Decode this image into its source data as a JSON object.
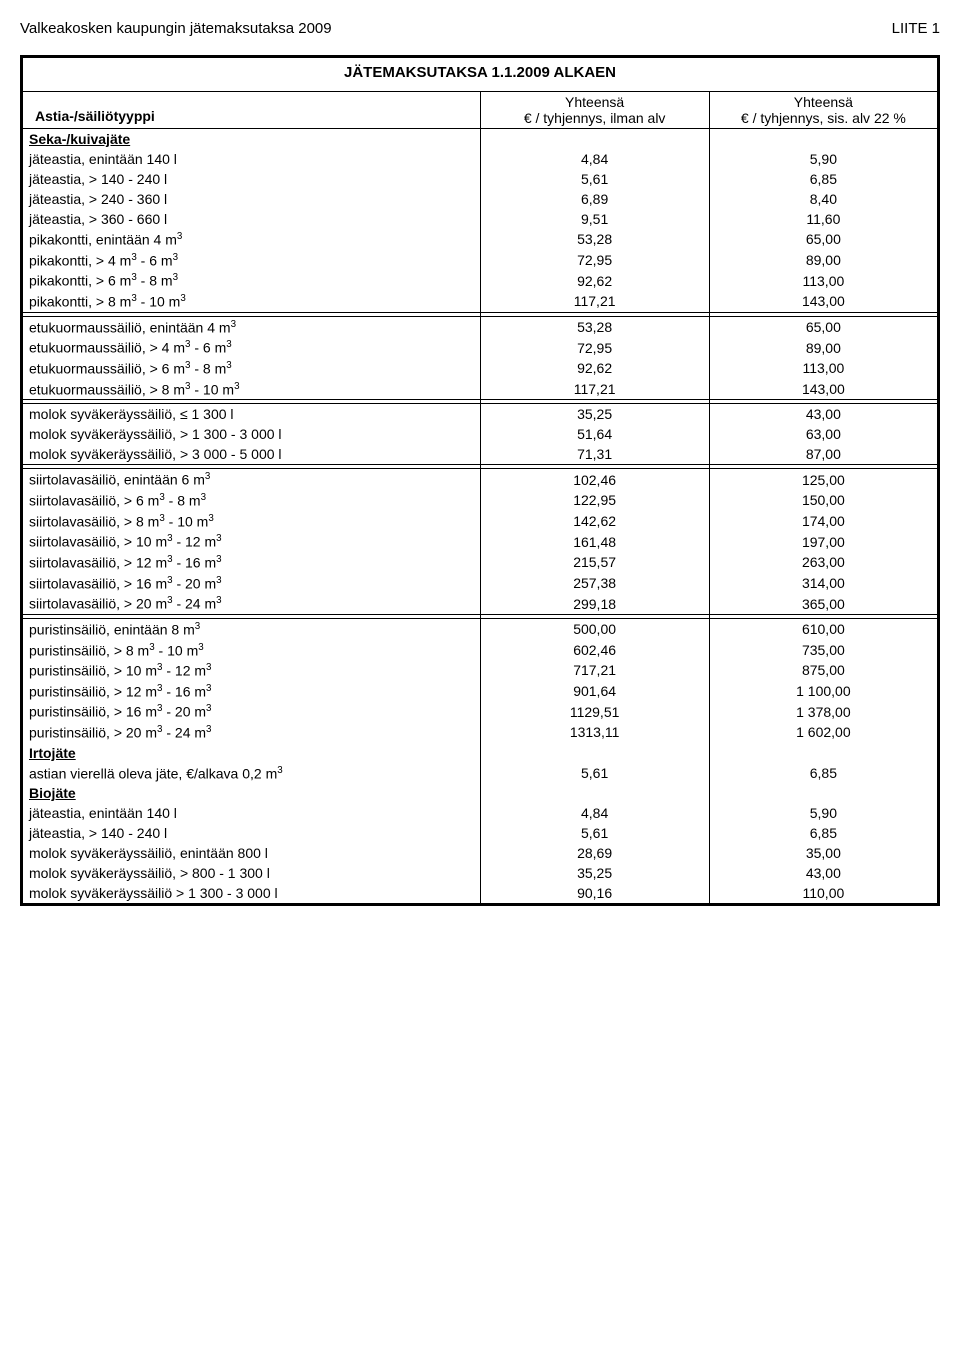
{
  "page_header_left": "Valkeakosken kaupungin jätemaksutaksa 2009",
  "page_header_right": "LIITE 1",
  "table_title": "JÄTEMAKSUTAKSA 1.1.2009 ALKAEN",
  "header_col1_label": "Astia-/säiliötyyppi",
  "header_col2_line1": "Yhteensä",
  "header_col2_line2": "€ / tyhjennys, ilman alv",
  "header_col3_line1": "Yhteensä",
  "header_col3_line2": "€ / tyhjennys, sis. alv 22 %",
  "sections": [
    {
      "title": "Seka-/kuivajäte",
      "groups": [
        [
          {
            "label": "jäteastia, enintään 140 l",
            "v1": "4,84",
            "v2": "5,90"
          },
          {
            "label": "jäteastia, > 140 - 240 l",
            "v1": "5,61",
            "v2": "6,85"
          },
          {
            "label": "jäteastia, > 240 - 360 l",
            "v1": "6,89",
            "v2": "8,40"
          },
          {
            "label": "jäteastia, > 360 - 660 l",
            "v1": "9,51",
            "v2": "11,60"
          },
          {
            "label": "pikakontti, enintään 4 m",
            "sup": "3",
            "v1": "53,28",
            "v2": "65,00"
          },
          {
            "label_html": "pikakontti, > 4 m<sup>3</sup> - 6 m<sup>3</sup>",
            "v1": "72,95",
            "v2": "89,00"
          },
          {
            "label_html": "pikakontti, > 6 m<sup>3</sup> - 8 m<sup>3</sup>",
            "v1": "92,62",
            "v2": "113,00"
          },
          {
            "label_html": "pikakontti, > 8 m<sup>3</sup> - 10 m<sup>3</sup>",
            "v1": "117,21",
            "v2": "143,00"
          }
        ],
        [
          {
            "label_html": "etukuormaussäiliö, enintään 4 m<sup>3</sup>",
            "v1": "53,28",
            "v2": "65,00"
          },
          {
            "label_html": "etukuormaussäiliö, > 4 m<sup>3</sup> - 6 m<sup>3</sup>",
            "v1": "72,95",
            "v2": "89,00"
          },
          {
            "label_html": "etukuormaussäiliö, > 6 m<sup>3</sup> - 8 m<sup>3</sup>",
            "v1": "92,62",
            "v2": "113,00"
          },
          {
            "label_html": "etukuormaussäiliö, > 8 m<sup>3</sup> - 10 m<sup>3</sup>",
            "v1": "117,21",
            "v2": "143,00"
          }
        ],
        [
          {
            "label": "molok syväkeräyssäiliö, ≤ 1 300 l",
            "v1": "35,25",
            "v2": "43,00"
          },
          {
            "label": "molok syväkeräyssäiliö, > 1 300 - 3 000 l",
            "v1": "51,64",
            "v2": "63,00"
          },
          {
            "label": "molok syväkeräyssäiliö, > 3 000 - 5 000 l",
            "v1": "71,31",
            "v2": "87,00"
          }
        ],
        [
          {
            "label_html": "siirtolavasäiliö, enintään 6 m<sup>3</sup>",
            "v1": "102,46",
            "v2": "125,00"
          },
          {
            "label_html": "siirtolavasäiliö, > 6 m<sup>3</sup> - 8 m<sup>3</sup>",
            "v1": "122,95",
            "v2": "150,00"
          },
          {
            "label_html": "siirtolavasäiliö, > 8 m<sup>3</sup> - 10 m<sup>3</sup>",
            "v1": "142,62",
            "v2": "174,00"
          },
          {
            "label_html": "siirtolavasäiliö, > 10 m<sup>3</sup> - 12 m<sup>3</sup>",
            "v1": "161,48",
            "v2": "197,00"
          },
          {
            "label_html": "siirtolavasäiliö, > 12 m<sup>3</sup> - 16 m<sup>3</sup>",
            "v1": "215,57",
            "v2": "263,00"
          },
          {
            "label_html": "siirtolavasäiliö, > 16 m<sup>3</sup> - 20 m<sup>3</sup>",
            "v1": "257,38",
            "v2": "314,00"
          },
          {
            "label_html": "siirtolavasäiliö, > 20 m<sup>3</sup> - 24 m<sup>3</sup>",
            "v1": "299,18",
            "v2": "365,00"
          }
        ],
        [
          {
            "label_html": "puristinsäiliö, enintään 8 m<sup>3</sup>",
            "v1": "500,00",
            "v2": "610,00"
          },
          {
            "label_html": "puristinsäiliö, > 8 m<sup>3</sup> - 10 m<sup>3</sup>",
            "v1": "602,46",
            "v2": "735,00"
          },
          {
            "label_html": "puristinsäiliö, > 10 m<sup>3</sup> - 12 m<sup>3</sup>",
            "v1": "717,21",
            "v2": "875,00"
          },
          {
            "label_html": "puristinsäiliö, > 12 m<sup>3</sup> - 16 m<sup>3</sup>",
            "v1": "901,64",
            "v2": "1 100,00"
          },
          {
            "label_html": "puristinsäiliö, > 16 m<sup>3</sup> - 20 m<sup>3</sup>",
            "v1": "1129,51",
            "v2": "1 378,00"
          },
          {
            "label_html": "puristinsäiliö, > 20 m<sup>3</sup> - 24 m<sup>3</sup>",
            "v1": "1313,11",
            "v2": "1 602,00"
          }
        ]
      ]
    },
    {
      "title": "Irtojäte",
      "no_sep_before": true,
      "groups": [
        [
          {
            "label_html": "astian vierellä oleva jäte, €/alkava 0,2 m<sup>3</sup>",
            "v1": "5,61",
            "v2": "6,85"
          }
        ]
      ]
    },
    {
      "title": "Biojäte",
      "no_sep_before": true,
      "groups": [
        [
          {
            "label": "jäteastia, enintään 140 l",
            "v1": "4,84",
            "v2": "5,90"
          },
          {
            "label": "jäteastia, > 140 - 240 l",
            "v1": "5,61",
            "v2": "6,85"
          },
          {
            "label": "molok syväkeräyssäiliö, enintään 800 l",
            "v1": "28,69",
            "v2": "35,00"
          },
          {
            "label": "molok syväkeräyssäiliö, > 800 - 1 300 l",
            "v1": "35,25",
            "v2": "43,00"
          },
          {
            "label": "molok syväkeräyssäiliö > 1 300 - 3 000 l",
            "v1": "90,16",
            "v2": "110,00"
          }
        ]
      ]
    }
  ],
  "colors": {
    "text": "#000000",
    "background": "#ffffff",
    "border": "#000000"
  },
  "fonts": {
    "body_size_pt": 11,
    "title_size_pt": 12
  }
}
